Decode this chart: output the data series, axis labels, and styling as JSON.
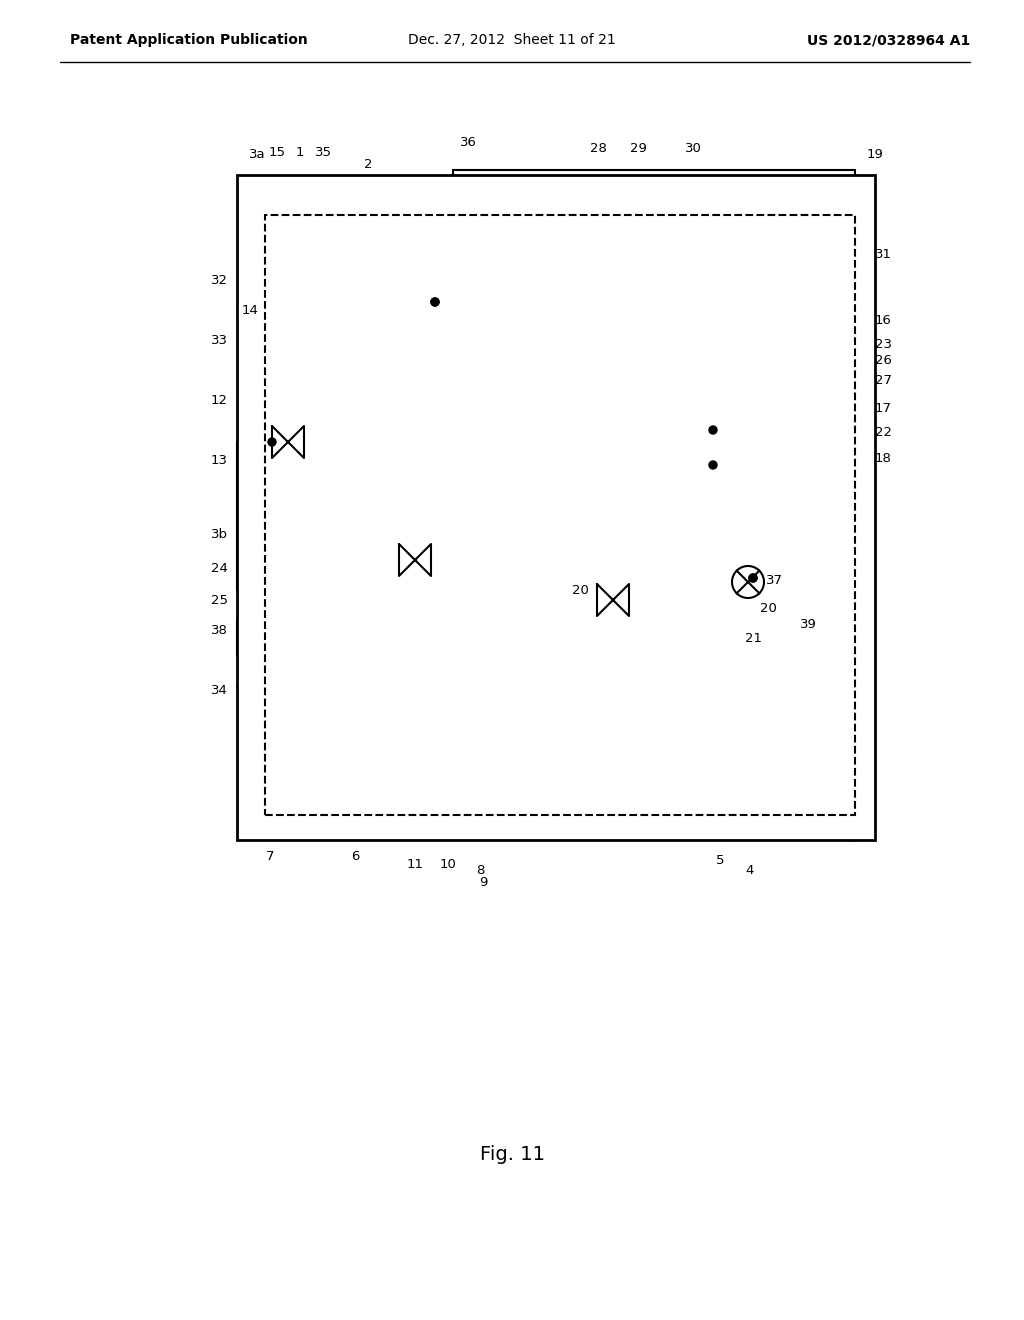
{
  "bg_color": "#ffffff",
  "header_left": "Patent Application Publication",
  "header_center": "Dec. 27, 2012  Sheet 11 of 21",
  "header_right": "US 2012/0328964 A1",
  "fig_label": "Fig. 11"
}
